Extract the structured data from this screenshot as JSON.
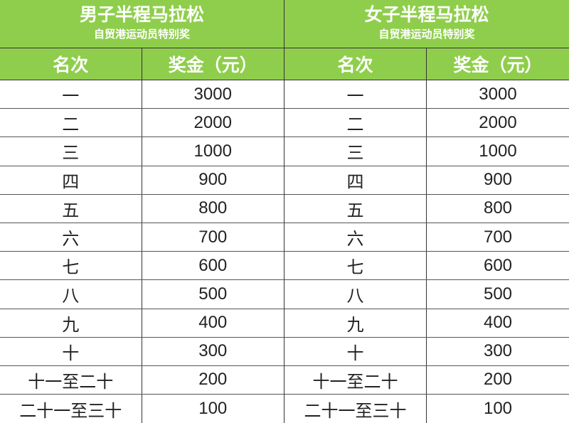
{
  "colors": {
    "header_bg": "#8fce4c",
    "header_text": "#ffffff"
  },
  "tables": [
    {
      "title": "男子半程马拉松",
      "subtitle": "自贸港运动员特别奖",
      "col_rank": "名次",
      "col_prize": "奖金（元）",
      "rows": [
        [
          "一",
          "3000"
        ],
        [
          "二",
          "2000"
        ],
        [
          "三",
          "1000"
        ],
        [
          "四",
          "900"
        ],
        [
          "五",
          "800"
        ],
        [
          "六",
          "700"
        ],
        [
          "七",
          "600"
        ],
        [
          "八",
          "500"
        ],
        [
          "九",
          "400"
        ],
        [
          "十",
          "300"
        ],
        [
          "十一至二十",
          "200"
        ],
        [
          "二十一至三十",
          "100"
        ]
      ]
    },
    {
      "title": "女子半程马拉松",
      "subtitle": "自贸港运动员特别奖",
      "col_rank": "名次",
      "col_prize": "奖金（元）",
      "rows": [
        [
          "一",
          "3000"
        ],
        [
          "二",
          "2000"
        ],
        [
          "三",
          "1000"
        ],
        [
          "四",
          "900"
        ],
        [
          "五",
          "800"
        ],
        [
          "六",
          "700"
        ],
        [
          "七",
          "600"
        ],
        [
          "八",
          "500"
        ],
        [
          "九",
          "400"
        ],
        [
          "十",
          "300"
        ],
        [
          "十一至二十",
          "200"
        ],
        [
          "二十一至三十",
          "100"
        ]
      ]
    }
  ]
}
